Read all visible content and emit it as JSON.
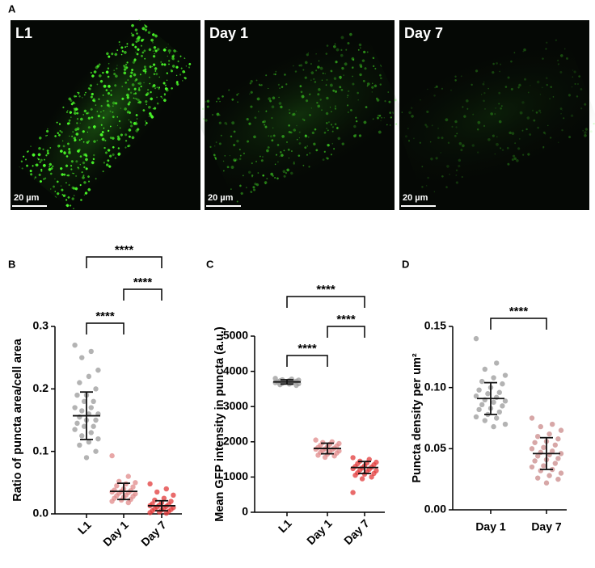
{
  "panel_labels": [
    "A",
    "B",
    "C",
    "D"
  ],
  "images": [
    {
      "label": "L1",
      "scale_bar": "20 µm"
    },
    {
      "label": "Day 1",
      "scale_bar": "20 µm"
    },
    {
      "label": "Day 7",
      "scale_bar": "20 µm"
    }
  ],
  "chart_data": [
    {
      "type": "dot",
      "y_label": "Ratio of puncta area/cell area",
      "categories": [
        "L1",
        "Day 1",
        "Day 7"
      ],
      "ylim": [
        0,
        0.3
      ],
      "yticks": [
        {
          "value": 0,
          "label": "0.0"
        },
        0.1,
        0.2,
        0.3
      ],
      "groups": [
        {
          "color": "#9a9a9a",
          "mean": 0.157,
          "sd": 0.038,
          "points": [
            0.27,
            0.26,
            0.25,
            0.23,
            0.22,
            0.21,
            0.2,
            0.19,
            0.19,
            0.18,
            0.18,
            0.17,
            0.17,
            0.165,
            0.16,
            0.16,
            0.155,
            0.15,
            0.15,
            0.145,
            0.14,
            0.14,
            0.135,
            0.13,
            0.125,
            0.12,
            0.115,
            0.11,
            0.1,
            0.09
          ]
        },
        {
          "color": "#e08a8a",
          "mean": 0.036,
          "sd": 0.013,
          "points": [
            0.093,
            0.06,
            0.052,
            0.05,
            0.048,
            0.045,
            0.043,
            0.04,
            0.038,
            0.037,
            0.036,
            0.035,
            0.034,
            0.033,
            0.032,
            0.03,
            0.029,
            0.028,
            0.027,
            0.025,
            0.023,
            0.022,
            0.02,
            0.018
          ]
        },
        {
          "color": "#e23a3a",
          "mean": 0.013,
          "sd": 0.008,
          "points": [
            0.048,
            0.04,
            0.035,
            0.03,
            0.025,
            0.022,
            0.02,
            0.018,
            0.016,
            0.015,
            0.014,
            0.013,
            0.012,
            0.011,
            0.01,
            0.009,
            0.008,
            0.007,
            0.006,
            0.005,
            0.004,
            0.003,
            0.002,
            0.001
          ]
        }
      ],
      "comparisons": [
        {
          "from": "L1",
          "to": "Day 1",
          "label": "****"
        },
        {
          "from": "Day 1",
          "to": "Day 7",
          "label": "****"
        },
        {
          "from": "L1",
          "to": "Day 7",
          "label": "****"
        }
      ]
    },
    {
      "type": "dot",
      "y_label": "Mean GFP intensity in puncta (a.u.)",
      "categories": [
        "L1",
        "Day 1",
        "Day 7"
      ],
      "ylim": [
        0,
        5000
      ],
      "yticks": [
        0,
        1000,
        2000,
        3000,
        4000,
        5000
      ],
      "groups": [
        {
          "color": "#9a9a9a",
          "mean": 3700,
          "sd": 60,
          "points": [
            3800,
            3780,
            3760,
            3750,
            3740,
            3730,
            3720,
            3710,
            3700,
            3700,
            3690,
            3680,
            3670,
            3660,
            3650,
            3640,
            3620,
            3600
          ]
        },
        {
          "color": "#e08a8a",
          "mean": 1810,
          "sd": 150,
          "points": [
            2050,
            2000,
            1980,
            1950,
            1930,
            1900,
            1880,
            1860,
            1840,
            1820,
            1800,
            1790,
            1780,
            1760,
            1740,
            1720,
            1700,
            1680,
            1650,
            1620,
            1600,
            1560
          ]
        },
        {
          "color": "#e23a3a",
          "mean": 1270,
          "sd": 170,
          "points": [
            1550,
            1500,
            1450,
            1420,
            1400,
            1380,
            1350,
            1320,
            1300,
            1280,
            1260,
            1240,
            1220,
            1200,
            1180,
            1150,
            1120,
            1100,
            1080,
            1050,
            1000,
            950,
            560
          ]
        }
      ],
      "comparisons": [
        {
          "from": "L1",
          "to": "Day 1",
          "label": "****"
        },
        {
          "from": "Day 1",
          "to": "Day 7",
          "label": "****"
        },
        {
          "from": "L1",
          "to": "Day 7",
          "label": "****"
        }
      ]
    },
    {
      "type": "dot",
      "y_label": "Puncta density per um²",
      "categories": [
        "Day 1",
        "Day 7"
      ],
      "ylim": [
        0,
        0.15
      ],
      "yticks": [
        {
          "value": 0,
          "label": "0.00"
        },
        0.05,
        {
          "value": 0.1,
          "label": "0.10"
        },
        0.15
      ],
      "groups": [
        {
          "color": "#9a9a9a",
          "mean": 0.091,
          "sd": 0.013,
          "points": [
            0.14,
            0.12,
            0.115,
            0.11,
            0.108,
            0.105,
            0.103,
            0.1,
            0.098,
            0.096,
            0.095,
            0.093,
            0.092,
            0.09,
            0.089,
            0.088,
            0.086,
            0.085,
            0.083,
            0.082,
            0.08,
            0.078,
            0.076,
            0.075,
            0.073,
            0.07,
            0.068
          ]
        },
        {
          "color": "#c98a8a",
          "mean": 0.046,
          "sd": 0.013,
          "points": [
            0.075,
            0.07,
            0.068,
            0.065,
            0.062,
            0.06,
            0.058,
            0.056,
            0.055,
            0.053,
            0.051,
            0.05,
            0.048,
            0.047,
            0.046,
            0.045,
            0.044,
            0.042,
            0.041,
            0.04,
            0.038,
            0.036,
            0.035,
            0.033,
            0.032,
            0.03,
            0.028,
            0.026,
            0.025,
            0.022
          ]
        }
      ],
      "comparisons": [
        {
          "from": "Day 1",
          "to": "Day 7",
          "label": "****"
        }
      ]
    }
  ]
}
